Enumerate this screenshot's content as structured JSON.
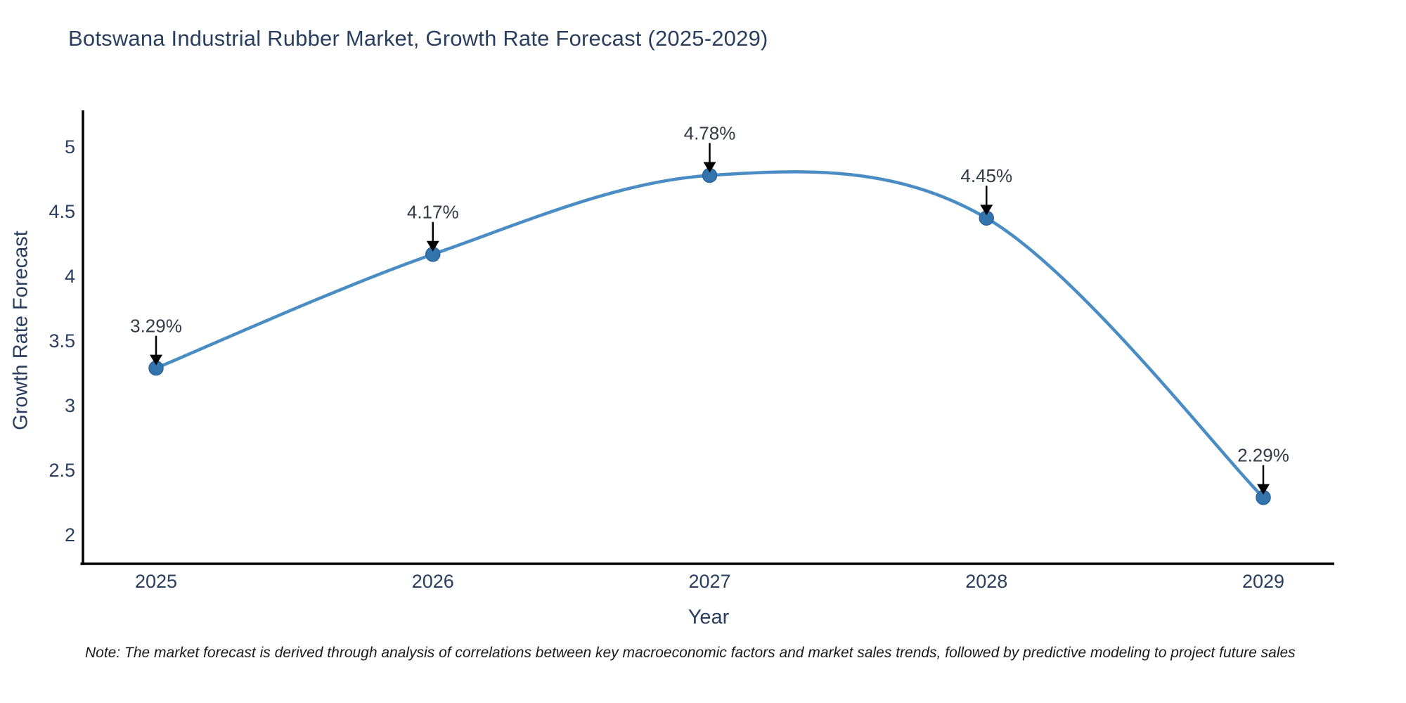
{
  "title": "Botswana Industrial Rubber Market, Growth Rate Forecast (2025-2029)",
  "footnote": "Note: The market forecast is derived through analysis of correlations between key macroeconomic factors and market sales trends, followed by predictive modeling to project future sales",
  "chart_data": {
    "type": "line",
    "line_shape": "spline",
    "title": "Botswana Industrial Rubber Market, Growth Rate Forecast (2025-2029)",
    "xlabel": "Year",
    "ylabel": "Growth Rate Forecast",
    "x": [
      2025,
      2026,
      2027,
      2028,
      2029
    ],
    "values": [
      3.29,
      4.17,
      4.78,
      4.45,
      2.29
    ],
    "point_labels": [
      "3.29%",
      "4.17%",
      "4.78%",
      "4.45%",
      "2.29%"
    ],
    "x_tick_labels": [
      "2025",
      "2026",
      "2027",
      "2028",
      "2029"
    ],
    "y_ticks": [
      2,
      2.5,
      3,
      3.5,
      4,
      4.5,
      5
    ],
    "y_tick_labels": [
      "2",
      "2.5",
      "3",
      "3.5",
      "4",
      "4.5",
      "5"
    ],
    "ylim": [
      1.78,
      5.3
    ],
    "xlim": [
      2024.74,
      2029.26
    ],
    "grid": false,
    "legend": "none",
    "annotations_have_arrows": true,
    "colors": {
      "line": "#4a8cc4",
      "marker_fill": "#3474ad",
      "marker_stroke": "#2c659a",
      "arrow": "#000000",
      "axis_spine": "#000000",
      "title_text": "#2a3f5f",
      "tick_text": "#2a3f5f",
      "annotation_text": "#333b46",
      "note_text": "#1a1a1a",
      "background": "#ffffff"
    }
  }
}
